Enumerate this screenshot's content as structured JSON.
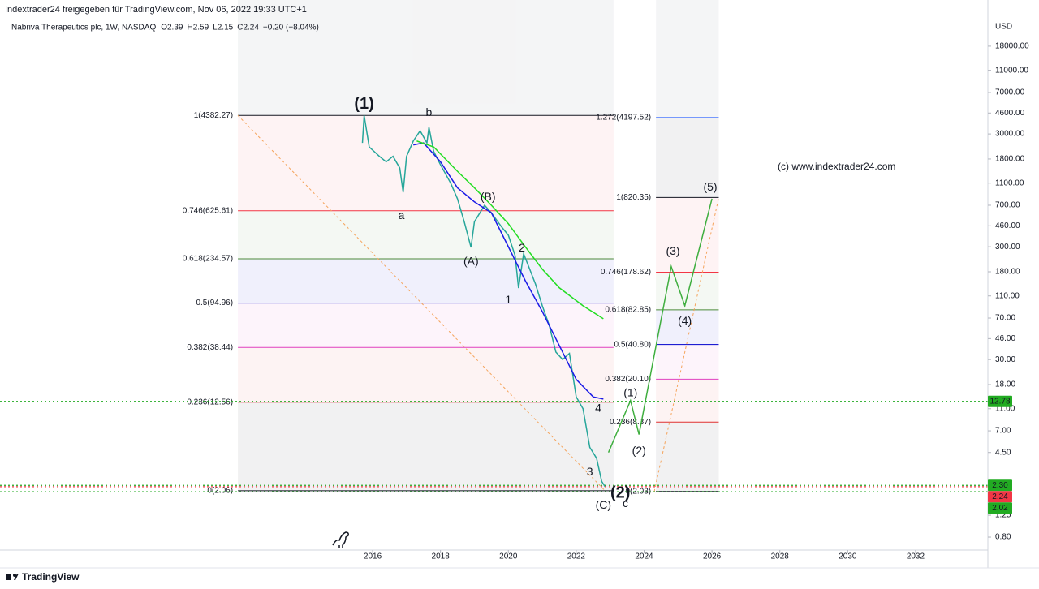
{
  "chart_data": {
    "type": "line",
    "share_line": "Indextrader24 freigegeben für TradingView.com, Nov 06, 2022 19:33 UTC+1",
    "symbol": "Nabriva Therapeutics plc, 1W, NASDAQ",
    "ohlc": [
      {
        "key": "O",
        "value": 2.39
      },
      {
        "key": "H",
        "value": 2.59
      },
      {
        "key": "L",
        "value": 2.15
      },
      {
        "key": "C",
        "value": 2.24
      }
    ],
    "change": "−0.20 (−8.04%)",
    "currency": "USD",
    "copyright": "(c) www.indextrader24.com",
    "brand": "TradingView",
    "log_scale": true,
    "xlim": [
      2005.02,
      2034.13
    ],
    "xticks": [
      2016,
      2018,
      2020,
      2022,
      2024,
      2026,
      2028,
      2030,
      2032
    ],
    "ylim": [
      0.614,
      46200
    ],
    "yticks": [
      {
        "value": 18000,
        "label": "18000.00"
      },
      {
        "value": 11000,
        "label": "11000.00"
      },
      {
        "value": 7000,
        "label": "7000.00"
      },
      {
        "value": 4600,
        "label": "4600.00"
      },
      {
        "value": 3000,
        "label": "3000.00"
      },
      {
        "value": 1800,
        "label": "1800.00"
      },
      {
        "value": 1100,
        "label": "1100.00"
      },
      {
        "value": 700,
        "label": "700.00"
      },
      {
        "value": 460,
        "label": "460.00"
      },
      {
        "value": 300,
        "label": "300.00"
      },
      {
        "value": 180,
        "label": "180.00"
      },
      {
        "value": 110,
        "label": "110.00"
      },
      {
        "value": 70,
        "label": "70.00"
      },
      {
        "value": 46,
        "label": "46.00"
      },
      {
        "value": 30,
        "label": "30.00"
      },
      {
        "value": 18,
        "label": "18.00"
      },
      {
        "value": 11,
        "label": "11.00"
      },
      {
        "value": 7,
        "label": "7.00"
      },
      {
        "value": 4.5,
        "label": "4.50"
      },
      {
        "value": 1.25,
        "label": "1.25"
      },
      {
        "value": 0.8,
        "label": "0.80"
      }
    ],
    "series": [
      {
        "color": "#26a69a",
        "x": [
          2015.7,
          2015.75,
          2015.9,
          2016.2,
          2016.4,
          2016.6,
          2016.8,
          2016.9,
          2017.0,
          2017.2,
          2017.4,
          2017.6,
          2017.66,
          2017.8,
          2018.0,
          2018.3,
          2018.5,
          2018.7,
          2018.9,
          2019.0,
          2019.3,
          2019.5,
          2019.8,
          2020.0,
          2020.2,
          2020.3,
          2020.45,
          2020.6,
          2020.8,
          2021.0,
          2021.2,
          2021.4,
          2021.6,
          2021.8,
          2022.0,
          2022.2,
          2022.4,
          2022.6,
          2022.75,
          2022.85
        ],
        "values": [
          2500,
          4382,
          2300,
          1900,
          1700,
          1900,
          1500,
          912,
          1900,
          2600,
          3200,
          2500,
          3440,
          2100,
          1600,
          1100,
          800,
          500,
          296,
          500,
          700,
          600,
          450,
          380,
          250,
          129,
          260,
          200,
          140,
          90,
          61,
          35,
          30,
          34,
          14,
          11,
          5,
          4,
          2.5,
          2.24
        ]
      },
      {
        "color": "#1a1ae6",
        "x": [
          2017.2,
          2017.5,
          2018.0,
          2018.5,
          2019.0,
          2019.5,
          2020.0,
          2020.5,
          2021.0,
          2021.5,
          2022.0,
          2022.5,
          2022.8
        ],
        "values": [
          2400,
          2500,
          1700,
          1000,
          750,
          600,
          300,
          150,
          80,
          40,
          20,
          14,
          13.4
        ]
      },
      {
        "color": "#22dd22",
        "x": [
          2017.3,
          2017.8,
          2018.5,
          2019.0,
          2019.5,
          2020.0,
          2020.5,
          2021.0,
          2021.5,
          2022.2,
          2022.8
        ],
        "values": [
          2600,
          2300,
          1400,
          1000,
          700,
          480,
          300,
          190,
          130,
          90,
          69
        ]
      },
      {
        "color": "#3fae3f",
        "x": [
          2022.95,
          2023.6,
          2023.85,
          2024.8,
          2025.2,
          2026.0
        ],
        "values": [
          4.5,
          13,
          6.5,
          200,
          90,
          800
        ]
      }
    ],
    "trendlines": [
      {
        "color": "#f5a45c",
        "x": [
          2012.03,
          2022.85
        ],
        "values": [
          4382.27,
          2.06
        ]
      },
      {
        "color": "#f5a45c",
        "x": [
          2024.3,
          2026.2
        ],
        "values": [
          2.03,
          820.35
        ]
      }
    ],
    "fib_sets": [
      {
        "from": 2012.03,
        "to": 2023.1,
        "levels": [
          {
            "label": "1(4382.27)",
            "value": 4382.27,
            "color": "#131722"
          },
          {
            "label": "0.746(625.61)",
            "value": 625.61,
            "color": "#f23645"
          },
          {
            "label": "0.618(234.57)",
            "value": 234.57,
            "color": "#4c8a3a"
          },
          {
            "label": "0.5(94.96)",
            "value": 94.96,
            "color": "#0000cc"
          },
          {
            "label": "0.382(38.44)",
            "value": 38.44,
            "color": "#e040c0"
          },
          {
            "label": "0.236(12.56)",
            "value": 12.56,
            "color": "#e03030"
          },
          {
            "label": "0(2.06)",
            "value": 2.06,
            "color": "#131722"
          }
        ]
      },
      {
        "from": 2024.35,
        "to": 2026.2,
        "levels": [
          {
            "label": "1.272(4197.52)",
            "value": 4197.52,
            "color": "#2962ff"
          },
          {
            "label": "1(820.35)",
            "value": 820.35,
            "color": "#131722"
          },
          {
            "label": "0.746(178.62)",
            "value": 178.62,
            "color": "#f23645"
          },
          {
            "label": "0.618(82.85)",
            "value": 82.85,
            "color": "#4c8a3a"
          },
          {
            "label": "0.5(40.80)",
            "value": 40.8,
            "color": "#0000cc"
          },
          {
            "label": "0.382(20.10)",
            "value": 20.1,
            "color": "#e040c0"
          },
          {
            "label": "0.236(8.37)",
            "value": 8.37,
            "color": "#e03030"
          },
          {
            "label": "0(2.03)",
            "value": 2.03,
            "color": "#131722"
          }
        ]
      }
    ],
    "price_lines": [
      {
        "value": 12.78,
        "label": "12.78",
        "color": "#22ab22"
      },
      {
        "value": 2.3,
        "label": "2.30",
        "color": "#22ab22"
      },
      {
        "value": 2.24,
        "label": "2.24",
        "color": "#f23645"
      },
      {
        "value": 2.02,
        "label": "2.02",
        "color": "#22ab22"
      }
    ],
    "annotations": [
      {
        "text": "(1)",
        "x": 2015.75,
        "y": 5500,
        "color": "#131722",
        "emphasis": true
      },
      {
        "text": "b",
        "x": 2017.66,
        "y": 4600,
        "color": "#e03030",
        "emphasis": false
      },
      {
        "text": "a",
        "x": 2016.85,
        "y": 560,
        "color": "#e03030",
        "emphasis": false
      },
      {
        "text": "(B)",
        "x": 2019.4,
        "y": 820,
        "color": "#9c27b0",
        "emphasis": false
      },
      {
        "text": "(A)",
        "x": 2018.9,
        "y": 220,
        "color": "#9c27b0",
        "emphasis": false
      },
      {
        "text": "2",
        "x": 2020.4,
        "y": 290,
        "color": "#f48fb1",
        "emphasis": false
      },
      {
        "text": "1",
        "x": 2020.0,
        "y": 100,
        "color": "#f48fb1",
        "emphasis": false
      },
      {
        "text": "4",
        "x": 2022.65,
        "y": 11,
        "color": "#f48fb1",
        "emphasis": false
      },
      {
        "text": "3",
        "x": 2022.4,
        "y": 3,
        "color": "#f48fb1",
        "emphasis": false
      },
      {
        "text": "(2)",
        "x": 2023.3,
        "y": 1.95,
        "color": "#131722",
        "emphasis": true
      },
      {
        "text": "c",
        "x": 2023.45,
        "y": 1.57,
        "color": "#e03030",
        "emphasis": false
      },
      {
        "text": "(C)",
        "x": 2022.8,
        "y": 1.52,
        "color": "#9c27b0",
        "emphasis": false
      },
      {
        "text": "(1)",
        "x": 2023.6,
        "y": 15,
        "color": "#3fae3f",
        "emphasis": false
      },
      {
        "text": "(2)",
        "x": 2023.85,
        "y": 4.6,
        "color": "#3fae3f",
        "emphasis": false
      },
      {
        "text": "(3)",
        "x": 2024.85,
        "y": 270,
        "color": "#3fae3f",
        "emphasis": false
      },
      {
        "text": "(4)",
        "x": 2025.2,
        "y": 65,
        "color": "#3fae3f",
        "emphasis": false
      },
      {
        "text": "(5)",
        "x": 2025.95,
        "y": 1000,
        "color": "#3fae3f",
        "emphasis": false
      }
    ]
  }
}
